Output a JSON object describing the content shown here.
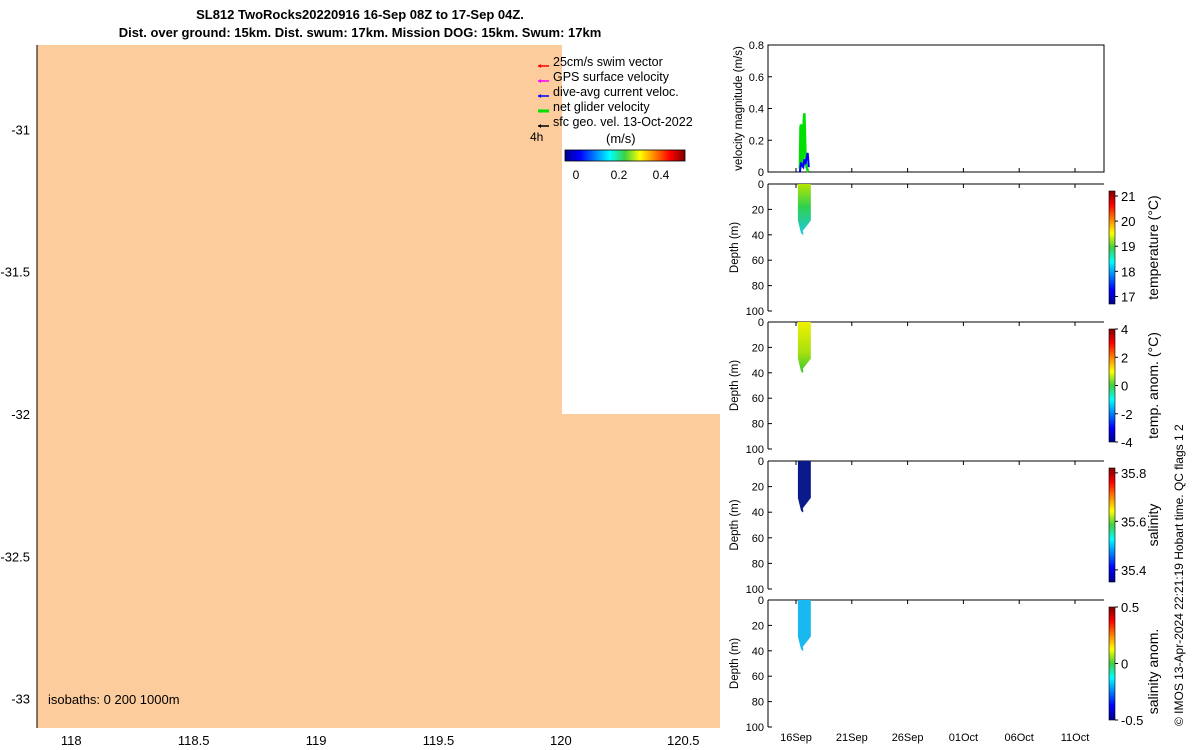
{
  "title": {
    "line1": "SL812 TwoRocks20220916 16-Sep 08Z to 17-Sep 04Z.",
    "line2": "Dist. over ground: 15km. Dist. swum: 17km. Mission DOG: 15km. Swum: 17km"
  },
  "credit": "© IMOS 13-Apr-2024 22:21:19 Hobart time. QC flags 1  2",
  "colors": {
    "land": "#fccc9c",
    "line_sw": "#00e000",
    "line_dav": "#0000ff",
    "temp_fill": "#6ed400",
    "temp_anom_fill": "#d6f000",
    "sal_fill": "#0a1a8a",
    "sal_anom_fill": "#1ab8f0"
  },
  "legend": {
    "items": [
      {
        "label": "25cm/s swim vector",
        "color": "#ff0000"
      },
      {
        "label": "GPS surface velocity",
        "color": "#ff00ff"
      },
      {
        "label": "dive-avg current veloc.",
        "color": "#0000ff"
      },
      {
        "label": "net glider velocity",
        "color": "#00e000"
      },
      {
        "label": "sfc geo. vel. 13-Oct-2022",
        "color": "#000000"
      }
    ],
    "time_label": "4h",
    "colorbar_label": "(m/s)",
    "colorbar_ticks": [
      "0",
      "0.2",
      "0.4"
    ],
    "isobaths": "isobaths: 0   200  1000m"
  },
  "map": {
    "xticks": [
      "118",
      "118.5",
      "119",
      "119.5",
      "120",
      "120.5"
    ],
    "yticks": [
      "-31",
      "-31.5",
      "-32",
      "-32.5",
      "-33"
    ]
  },
  "chart_data": [
    {
      "type": "map",
      "lon_ticks": [
        118,
        118.5,
        119,
        119.5,
        120,
        120.5
      ],
      "lat_ticks": [
        -31,
        -31.5,
        -32,
        -32.5,
        -33
      ],
      "xlim": [
        117.86,
        120.65
      ],
      "ylim": [
        -33.1,
        -30.7
      ]
    },
    {
      "type": "line",
      "ylabel": "velocity magnitude (m/s)",
      "ylim": [
        0,
        0.8
      ],
      "yticks": [
        "0",
        "0.2",
        "0.4",
        "0.6",
        "0.8"
      ],
      "xticks": [
        "16Sep",
        "21Sep",
        "26Sep",
        "01Oct",
        "06Oct",
        "11Oct"
      ],
      "series": [
        {
          "name": "net glider velocity",
          "color": "#00e000",
          "x": [
            16.35,
            16.4,
            16.45,
            16.5,
            16.55,
            16.6,
            16.65,
            16.7,
            16.75,
            16.8,
            16.85,
            16.9,
            16.95,
            17.0,
            17.05,
            17.1
          ],
          "y": [
            0.02,
            0.28,
            0.3,
            0.27,
            0.12,
            0.05,
            0.22,
            0.33,
            0.37,
            0.25,
            0.1,
            0.05,
            0.03,
            0.02,
            0.01,
            0.0
          ]
        },
        {
          "name": "dive-avg current veloc.",
          "color": "#0000ff",
          "x": [
            16.35,
            16.45,
            16.55,
            16.65,
            16.75,
            16.85,
            16.95,
            17.05,
            17.15
          ],
          "y": [
            0.0,
            0.06,
            0.04,
            0.03,
            0.08,
            0.05,
            0.09,
            0.12,
            0.03
          ]
        }
      ]
    },
    {
      "type": "scatter",
      "ylabel": "Depth (m)",
      "ylim": [
        100,
        0
      ],
      "yticks": [
        "0",
        "20",
        "40",
        "60",
        "80",
        "100"
      ],
      "colorbar": {
        "label": "temperature (°C)",
        "ticks": [
          "17",
          "18",
          "19",
          "20",
          "21"
        ],
        "range": [
          16.7,
          21.2
        ]
      },
      "x_range": [
        16.35,
        17.15
      ],
      "depth_max": 40
    },
    {
      "type": "scatter",
      "ylabel": "Depth (m)",
      "ylim": [
        100,
        0
      ],
      "yticks": [
        "0",
        "20",
        "40",
        "60",
        "80",
        "100"
      ],
      "colorbar": {
        "label": "temp. anom. (°C)",
        "ticks": [
          "-4",
          "-2",
          "0",
          "2",
          "4"
        ],
        "range": [
          -4,
          4
        ]
      },
      "x_range": [
        16.35,
        17.15
      ],
      "depth_max": 40
    },
    {
      "type": "scatter",
      "ylabel": "Depth (m)",
      "ylim": [
        100,
        0
      ],
      "yticks": [
        "0",
        "20",
        "40",
        "60",
        "80",
        "100"
      ],
      "colorbar": {
        "label": "salinity",
        "ticks": [
          "35.4",
          "35.6",
          "35.8"
        ],
        "range": [
          35.35,
          35.82
        ]
      },
      "x_range": [
        16.35,
        17.15
      ],
      "depth_max": 40
    },
    {
      "type": "scatter",
      "ylabel": "Depth (m)",
      "ylim": [
        100,
        0
      ],
      "yticks": [
        "0",
        "20",
        "40",
        "60",
        "80",
        "100"
      ],
      "xticks": [
        "16Sep",
        "21Sep",
        "26Sep",
        "01Oct",
        "06Oct",
        "11Oct"
      ],
      "colorbar": {
        "label": "salinity anom.",
        "ticks": [
          "-0.5",
          "0",
          "0.5"
        ],
        "range": [
          -0.5,
          0.5
        ]
      },
      "x_range": [
        16.35,
        17.15
      ],
      "depth_max": 40
    }
  ]
}
